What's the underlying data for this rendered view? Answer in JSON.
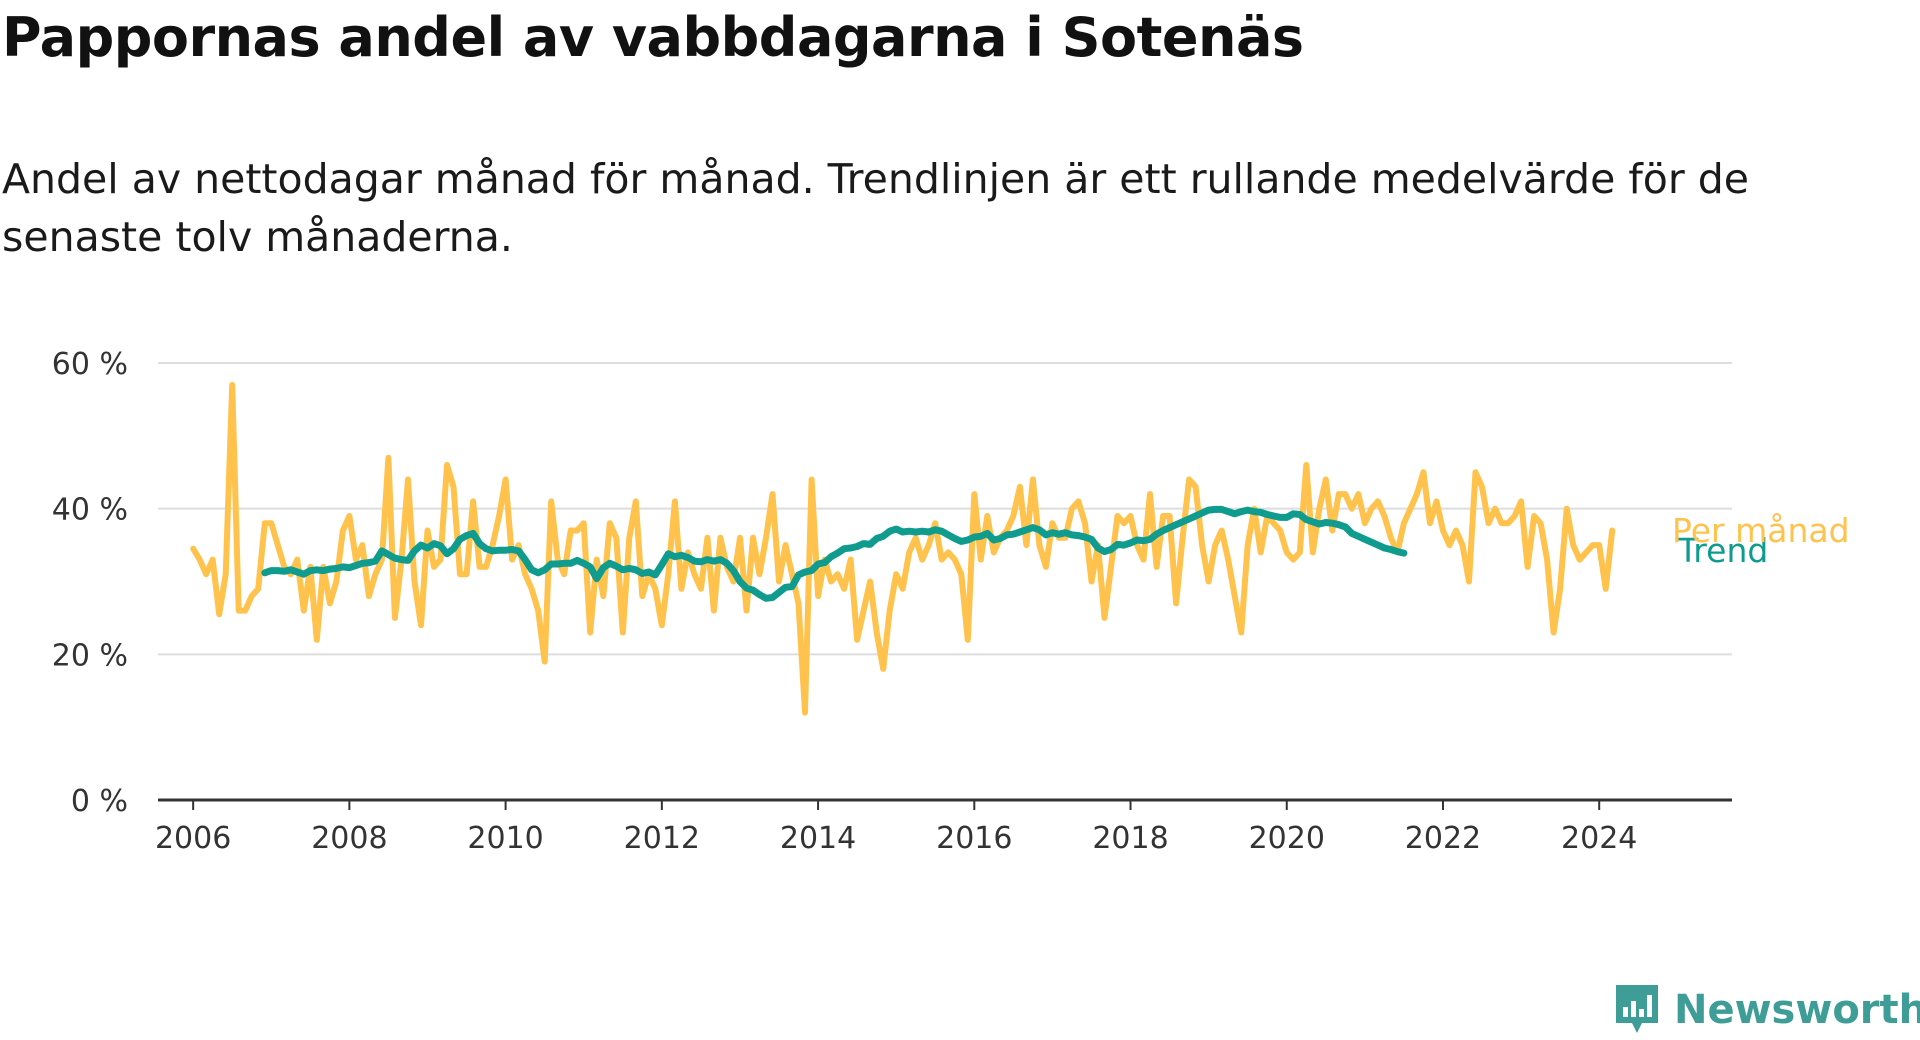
{
  "title": "Pappornas andel av vabbdagarna i Sotenäs",
  "subtitle": "Andel av nettodagar månad för månad. Trendlinjen är ett rullande medelvärde för de senaste tolv månaderna.",
  "brand": "Newsworthy",
  "colors": {
    "monthly": "#ffc34d",
    "trend": "#0f9b8e",
    "grid": "#dddddd",
    "axis": "#333333",
    "brand": "#3e9d96"
  },
  "chart_data": {
    "type": "line",
    "title": "Pappornas andel av vabbdagarna i Sotenäs",
    "ylim": [
      0,
      60
    ],
    "yticks": [
      0,
      20,
      40,
      60
    ],
    "ytick_labels": [
      "0 %",
      "20 %",
      "40 %",
      "60 %"
    ],
    "xlim": [
      2005.55,
      2025.7
    ],
    "xticks": [
      2006,
      2008,
      2010,
      2012,
      2014,
      2016,
      2018,
      2020,
      2022,
      2024
    ],
    "xtick_labels": [
      "2006",
      "2008",
      "2010",
      "2012",
      "2014",
      "2016",
      "2018",
      "2020",
      "2022",
      "2024"
    ],
    "grid": true,
    "series": [
      {
        "name": "Per månad",
        "start_year": 2006,
        "start_month": 1,
        "values": [
          34.5,
          33,
          31,
          33,
          25.5,
          31,
          57,
          26,
          26,
          28,
          29,
          38,
          38,
          35,
          32,
          31,
          33,
          26,
          32,
          22,
          32,
          27,
          30,
          37,
          39,
          33,
          35,
          28,
          31,
          33,
          47,
          25,
          33,
          44,
          30,
          24,
          37,
          32,
          33,
          46,
          43,
          31,
          31,
          41,
          32,
          32,
          35,
          39,
          44,
          33,
          35,
          31,
          29,
          26,
          19,
          41,
          33,
          31,
          37,
          37,
          38,
          23,
          33,
          28,
          38,
          36,
          23,
          36,
          41,
          28,
          31,
          29,
          24,
          31,
          41,
          29,
          34,
          31,
          29,
          36,
          26,
          36,
          32,
          30,
          36,
          26,
          36,
          31,
          36,
          42,
          30,
          35,
          31,
          27,
          12,
          44,
          28,
          33,
          30,
          31,
          29,
          33,
          22,
          26,
          30,
          23,
          18,
          26,
          31,
          29,
          34,
          36,
          33,
          35,
          38,
          33,
          34,
          33,
          31,
          22,
          42,
          33,
          39,
          34,
          36,
          37,
          39,
          43,
          35,
          44,
          35,
          32,
          38,
          36,
          36,
          40,
          41,
          38,
          30,
          35,
          25,
          32,
          39,
          38,
          39,
          35,
          33,
          42,
          32,
          39,
          39,
          27,
          36,
          44,
          43,
          35,
          30,
          35,
          37,
          33,
          28,
          23,
          35,
          40,
          34,
          39,
          38,
          37,
          34,
          33,
          34,
          46,
          34,
          40,
          44,
          37,
          42,
          42,
          40,
          42,
          38,
          40,
          41,
          39,
          36,
          34,
          38,
          40,
          42,
          45,
          38,
          41,
          37,
          35,
          37,
          35,
          30,
          45,
          43,
          38,
          40,
          38,
          38,
          39,
          41,
          32,
          39,
          38,
          33,
          23,
          29,
          40,
          35,
          33,
          34,
          35,
          35,
          29,
          37
        ]
      },
      {
        "name": "Trend",
        "start_year": 2006,
        "start_month": 12,
        "values": [
          31.2,
          31.5,
          31.5,
          31.4,
          31.6,
          31.3,
          31.0,
          31.5,
          31.6,
          31.5,
          31.7,
          31.8,
          32.0,
          31.9,
          32.2,
          32.5,
          32.6,
          32.8,
          34.2,
          33.7,
          33.2,
          33.0,
          32.9,
          34.2,
          35.0,
          34.6,
          35.2,
          34.9,
          33.8,
          34.5,
          35.8,
          36.3,
          36.6,
          35.2,
          34.5,
          34.2,
          34.3,
          34.3,
          34.4,
          34.2,
          33.0,
          31.6,
          31.2,
          31.6,
          32.4,
          32.4,
          32.5,
          32.5,
          32.9,
          32.5,
          32.0,
          30.4,
          31.9,
          32.5,
          32.1,
          31.6,
          31.8,
          31.6,
          31.1,
          31.3,
          30.9,
          32.3,
          33.8,
          33.4,
          33.6,
          33.3,
          32.8,
          32.7,
          33.0,
          32.8,
          33.0,
          32.5,
          31.5,
          30.0,
          29.1,
          28.8,
          28.2,
          27.7,
          27.8,
          28.5,
          29.2,
          29.3,
          30.9,
          31.3,
          31.5,
          32.4,
          32.6,
          33.4,
          33.9,
          34.5,
          34.6,
          34.8,
          35.2,
          35.1,
          35.9,
          36.2,
          36.9,
          37.2,
          36.8,
          36.9,
          36.8,
          36.9,
          36.8,
          37.1,
          36.9,
          36.4,
          35.9,
          35.5,
          35.7,
          36.1,
          36.2,
          36.6,
          35.7,
          35.9,
          36.4,
          36.5,
          36.8,
          37.1,
          37.4,
          37.1,
          36.4,
          36.7,
          36.5,
          36.7,
          36.4,
          36.3,
          36.1,
          35.8,
          34.6,
          34.1,
          34.4,
          35.1,
          35.0,
          35.3,
          35.7,
          35.6,
          35.8,
          36.5,
          37.0,
          37.4,
          37.8,
          38.2,
          38.6,
          39.0,
          39.4,
          39.8,
          39.9,
          39.9,
          39.6,
          39.3,
          39.6,
          39.8,
          39.6,
          39.5,
          39.2,
          39.0,
          38.8,
          38.8,
          39.3,
          39.2,
          38.5,
          38.2,
          37.9,
          38.1,
          38.0,
          37.8,
          37.5,
          36.6,
          36.2,
          35.8,
          35.4,
          35.0,
          34.6,
          34.4,
          34.1,
          33.9
        ]
      }
    ]
  }
}
